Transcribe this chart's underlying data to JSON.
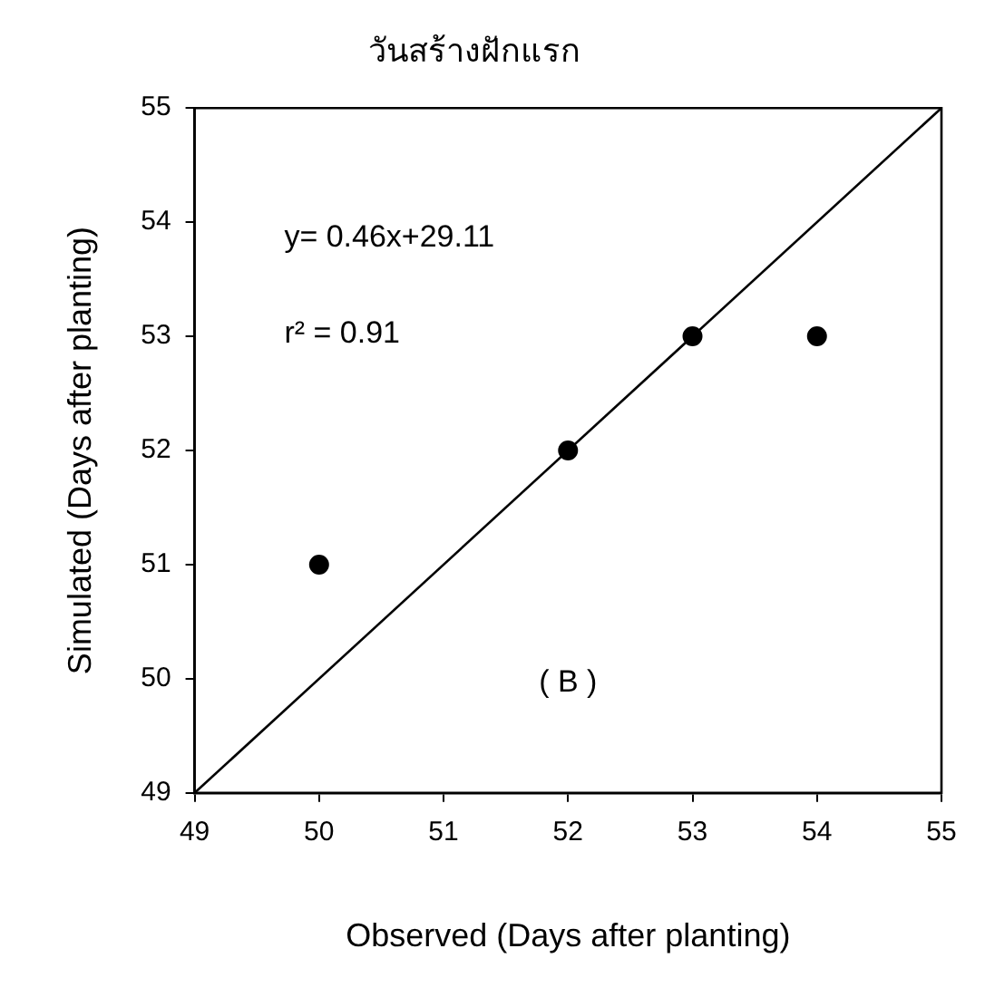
{
  "chart_data": {
    "type": "scatter",
    "title": "วันสร้างฝักแรก",
    "xlabel": "Observed (Days after planting)",
    "ylabel": "Simulated (Days after planting)",
    "x": [
      50,
      52,
      53,
      54
    ],
    "series": [
      {
        "color": "#000000",
        "values": [
          51,
          52,
          53,
          53
        ],
        "marker": "circle"
      },
      {
        "type": "line",
        "color": "#000000",
        "x": [
          49,
          55
        ],
        "values": [
          49,
          55
        ],
        "marker": "none"
      }
    ],
    "xlim": [
      49,
      55
    ],
    "ylim": [
      49,
      55
    ],
    "xticks": [
      49,
      50,
      51,
      52,
      53,
      54,
      55
    ],
    "yticks": [
      49,
      50,
      51,
      52,
      53,
      54,
      55
    ],
    "grid": false,
    "legend": false,
    "annotations": [
      "y= 0.46x+29.11",
      "r² = 0.91",
      "( B )"
    ]
  }
}
